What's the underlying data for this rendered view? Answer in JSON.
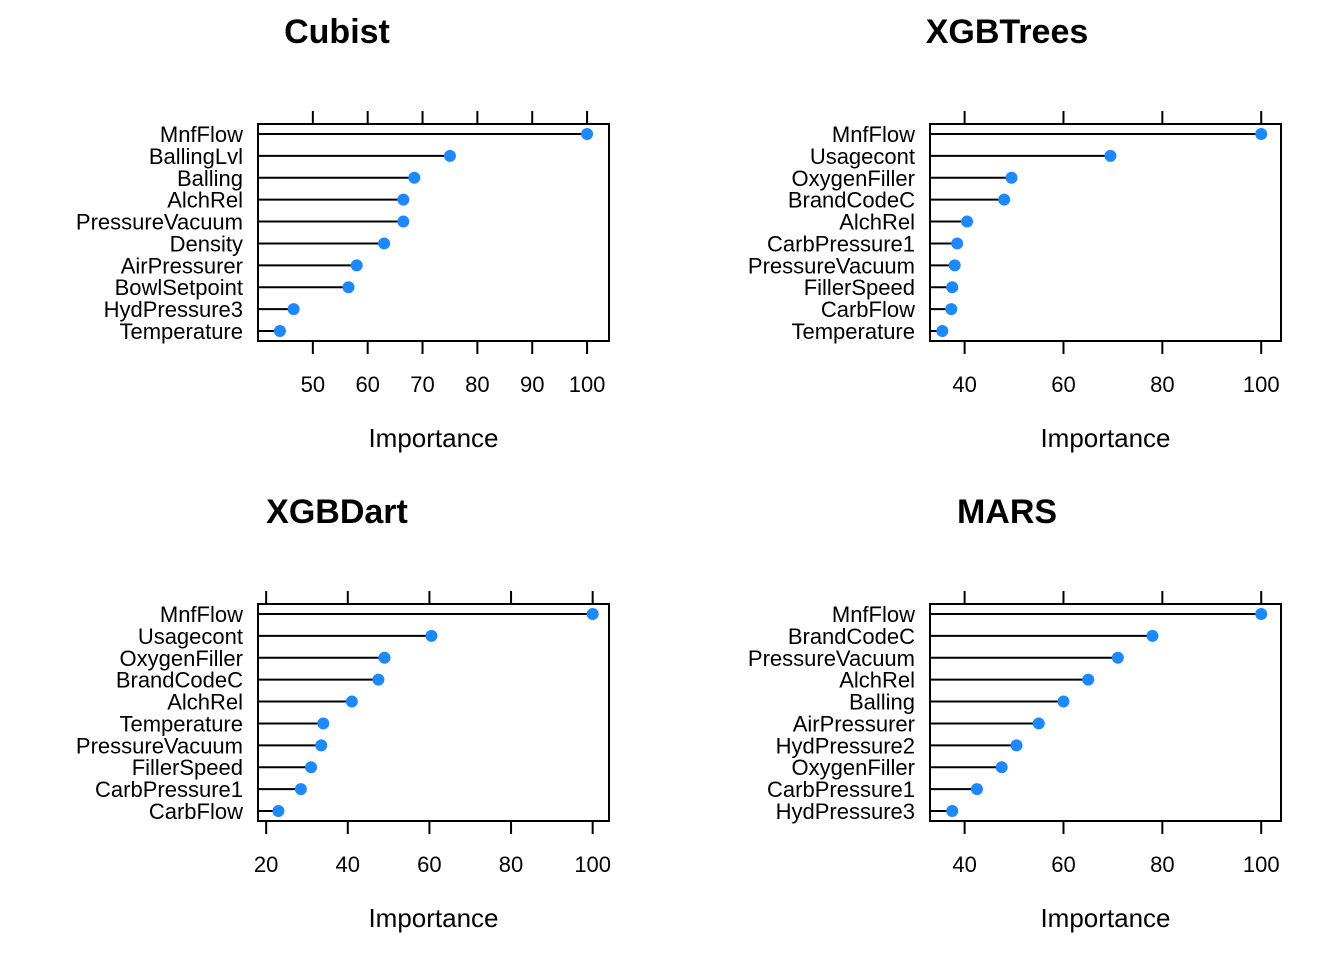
{
  "chart_data": [
    {
      "type": "dot",
      "title": "Cubist",
      "xlabel": "Importance",
      "xlim": [
        40,
        104
      ],
      "ticks": [
        50,
        60,
        70,
        80,
        90,
        100
      ],
      "categories": [
        "MnfFlow",
        "BallingLvl",
        "Balling",
        "AlchRel",
        "PressureVacuum",
        "Density",
        "AirPressurer",
        "BowlSetpoint",
        "HydPressure3",
        "Temperature"
      ],
      "values": [
        100,
        75,
        68.5,
        66.5,
        66.5,
        63,
        58,
        56.5,
        46.5,
        44
      ],
      "color": "#1e88ff"
    },
    {
      "type": "dot",
      "title": "XGBTrees",
      "xlabel": "Importance",
      "xlim": [
        33,
        104
      ],
      "ticks": [
        40,
        60,
        80,
        100
      ],
      "categories": [
        "MnfFlow",
        "Usagecont",
        "OxygenFiller",
        "BrandCodeC",
        "AlchRel",
        "CarbPressure1",
        "PressureVacuum",
        "FillerSpeed",
        "CarbFlow",
        "Temperature"
      ],
      "values": [
        100,
        69.5,
        49.5,
        48,
        40.5,
        38.5,
        38,
        37.5,
        37.3,
        35.5
      ],
      "color": "#1e88ff"
    },
    {
      "type": "dot",
      "title": "XGBDart",
      "xlabel": "Importance",
      "xlim": [
        18,
        104
      ],
      "ticks": [
        20,
        40,
        60,
        80,
        100
      ],
      "categories": [
        "MnfFlow",
        "Usagecont",
        "OxygenFiller",
        "BrandCodeC",
        "AlchRel",
        "Temperature",
        "PressureVacuum",
        "FillerSpeed",
        "CarbPressure1",
        "CarbFlow"
      ],
      "values": [
        100,
        60.5,
        49,
        47.5,
        41,
        34,
        33.5,
        31,
        28.5,
        23
      ],
      "color": "#1e88ff"
    },
    {
      "type": "dot",
      "title": "MARS",
      "xlabel": "Importance",
      "xlim": [
        33,
        104
      ],
      "ticks": [
        40,
        60,
        80,
        100
      ],
      "categories": [
        "MnfFlow",
        "BrandCodeC",
        "PressureVacuum",
        "AlchRel",
        "Balling",
        "AirPressurer",
        "HydPressure2",
        "OxygenFiller",
        "CarbPressure1",
        "HydPressure3"
      ],
      "values": [
        100,
        78,
        71,
        65,
        60,
        55,
        50.5,
        47.5,
        42.5,
        37.5
      ],
      "color": "#1e88ff"
    }
  ]
}
